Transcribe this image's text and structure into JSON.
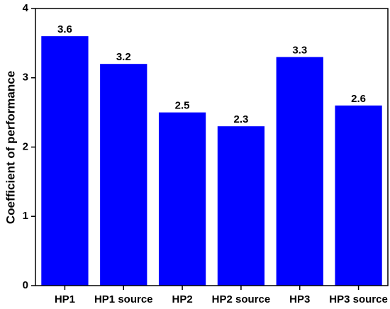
{
  "chart_data": {
    "type": "bar",
    "y_label": "Coefficient of performance",
    "categories": [
      "HP1",
      "HP1 source",
      "HP2",
      "HP2 source",
      "HP3",
      "HP3 source"
    ],
    "values": [
      3.6,
      3.2,
      2.5,
      2.3,
      3.3,
      2.6
    ],
    "color": "#0000ff",
    "ylim": [
      0,
      4
    ],
    "yticks": [
      0,
      1,
      2,
      3,
      4
    ],
    "grid": false
  }
}
